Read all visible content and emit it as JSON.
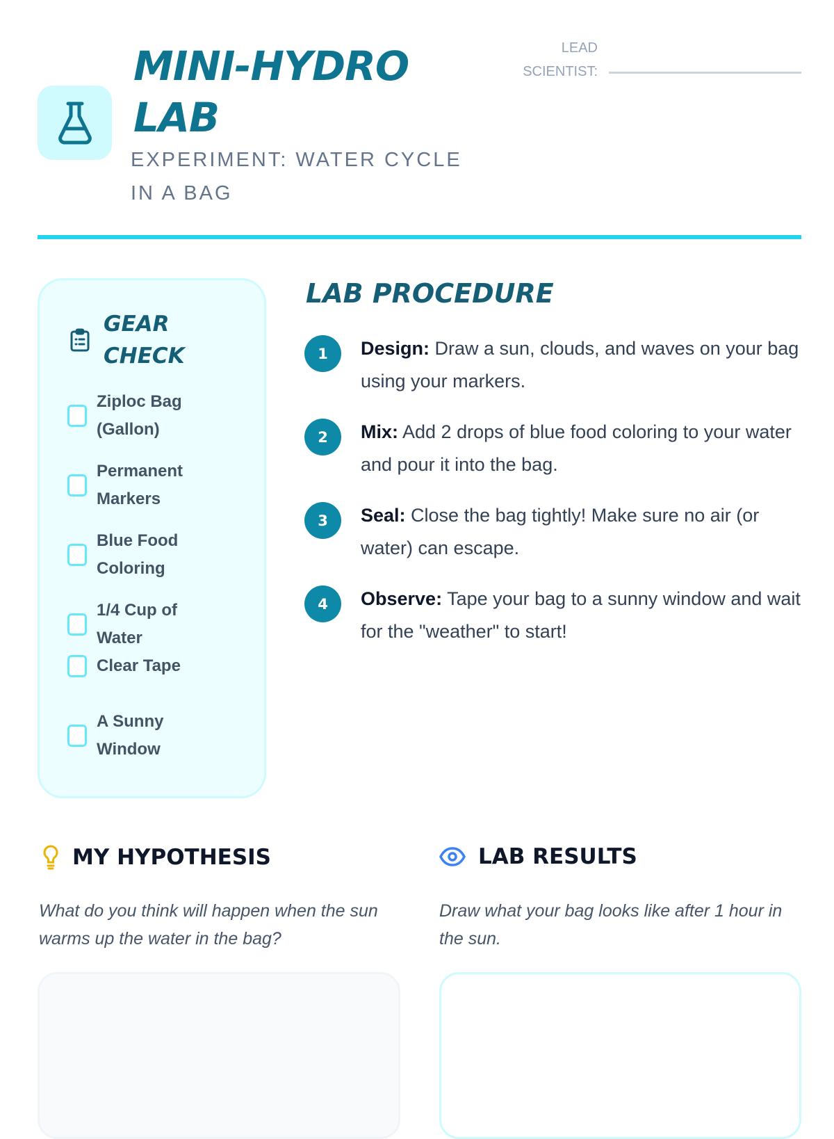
{
  "header": {
    "title": "MINI-HYDRO LAB",
    "subtitle": "EXPERIMENT: WATER CYCLE IN A BAG",
    "lead_label_1": "LEAD",
    "lead_label_2": "SCIENTIST:",
    "lead_value": "",
    "icon": "flask-icon"
  },
  "colors": {
    "accent": "#22d3ee",
    "primary": "#0e7490",
    "card_bg": "#ecfeff",
    "bulb": "#eab308",
    "eye": "#3b82f6"
  },
  "gear": {
    "title": "GEAR CHECK",
    "icon": "clipboard-list-icon",
    "items": [
      {
        "label": "Ziploc Bag (Gallon)",
        "checked": false
      },
      {
        "label": "Permanent Markers",
        "checked": false
      },
      {
        "label": "Blue Food Coloring",
        "checked": false
      },
      {
        "label": "1/4 Cup of Water",
        "checked": false
      },
      {
        "label": "Clear Tape",
        "checked": false
      },
      {
        "label": "A Sunny Window",
        "checked": false
      }
    ]
  },
  "procedure": {
    "title": "LAB PROCEDURE",
    "steps": [
      {
        "num": "1",
        "label": "Design:",
        "text": " Draw a sun, clouds, and waves on your bag using your markers."
      },
      {
        "num": "2",
        "label": "Mix:",
        "text": " Add 2 drops of blue food coloring to your water and pour it into the bag."
      },
      {
        "num": "3",
        "label": "Seal:",
        "text": " Close the bag tightly! Make sure no air (or water) can escape."
      },
      {
        "num": "4",
        "label": "Observe:",
        "text": " Tape your bag to a sunny window and wait for the \"weather\" to start!"
      }
    ]
  },
  "hypothesis": {
    "title": "MY HYPOTHESIS",
    "icon": "lightbulb-icon",
    "prompt": "What do you think will happen when the sun warms up the water in the bag?",
    "value": ""
  },
  "results": {
    "title": "LAB RESULTS",
    "icon": "eye-icon",
    "prompt": "Draw what your bag looks like after 1 hour in the sun."
  }
}
